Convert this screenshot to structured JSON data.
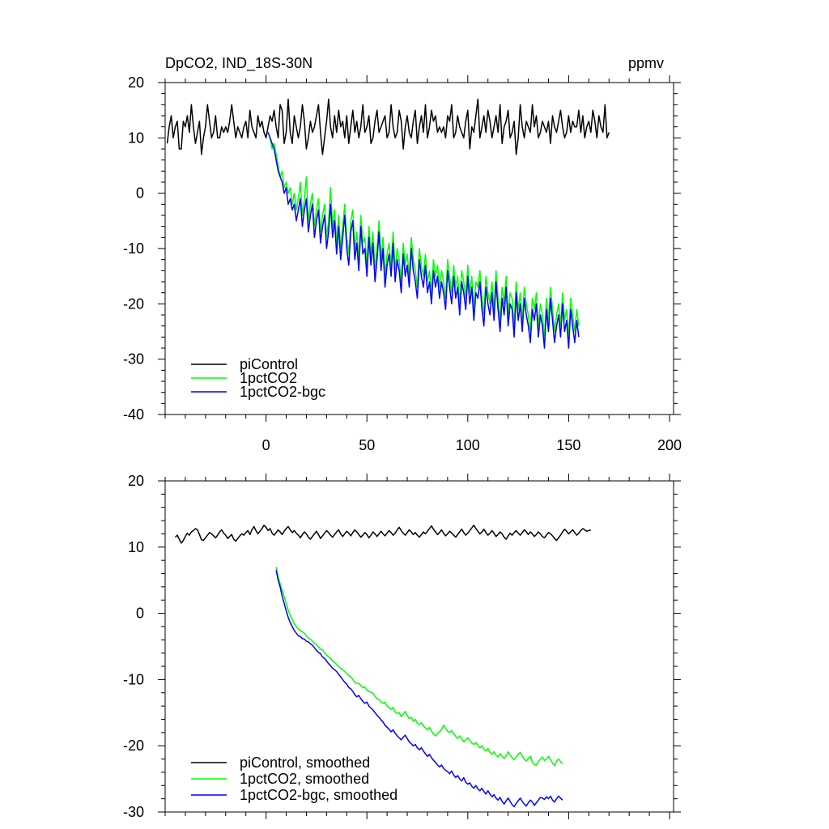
{
  "chart_data": [
    {
      "type": "line",
      "title": "DpCO2, IND_18S-30N",
      "units": "ppmv",
      "xlim": [
        -50,
        202
      ],
      "ylim": [
        -40,
        20
      ],
      "xticks": [
        0,
        50,
        100,
        150,
        200
      ],
      "xtick_labels": [
        "0",
        "50",
        "100",
        "150",
        "200"
      ],
      "yticks": [
        -40,
        -30,
        -20,
        -10,
        0,
        10,
        20
      ],
      "ytick_labels": [
        "-40",
        "-30",
        "-20",
        "-10",
        "0",
        "10",
        "20"
      ],
      "legend_position": "bottom-left",
      "series": [
        {
          "name": "piControl",
          "color": "#000000",
          "x_start": -49,
          "x_step": 1,
          "values": [
            9,
            12,
            14,
            10,
            12,
            13,
            8,
            8,
            13,
            12,
            14,
            11,
            16,
            12,
            9,
            11,
            13,
            7,
            10,
            12,
            16,
            13,
            10,
            11,
            14,
            10,
            10,
            12,
            11,
            12,
            11,
            13,
            16,
            13,
            10,
            12,
            11,
            10,
            12,
            13,
            10,
            15,
            12,
            11,
            10,
            14,
            12,
            13,
            11,
            10,
            12,
            14,
            13,
            15,
            12,
            10,
            16,
            15,
            9,
            11,
            17,
            11,
            9,
            14,
            12,
            10,
            12,
            16,
            13,
            8,
            10,
            13,
            11,
            12,
            14,
            16,
            11,
            7,
            10,
            13,
            17,
            12,
            10,
            14,
            11,
            15,
            12,
            13,
            10,
            14,
            9,
            12,
            15,
            11,
            13,
            10,
            12,
            16,
            11,
            12,
            14,
            9,
            10,
            13,
            15,
            11,
            12,
            13,
            14,
            10,
            11,
            16,
            12,
            10,
            11,
            15,
            13,
            8,
            12,
            14,
            11,
            10,
            13,
            15,
            9,
            12,
            14,
            11,
            16,
            10,
            12,
            15,
            13,
            14,
            11,
            12,
            11,
            12,
            10,
            14,
            13,
            16,
            10,
            11,
            14,
            12,
            11,
            10,
            13,
            15,
            8,
            12,
            11,
            14,
            17,
            10,
            12,
            14,
            11,
            15,
            13,
            10,
            12,
            14,
            11,
            16,
            9,
            12,
            13,
            15,
            10,
            11,
            13,
            7,
            10,
            16,
            12,
            10,
            13,
            12,
            11,
            16,
            12,
            14,
            10,
            11,
            13,
            12,
            11,
            13,
            9,
            14,
            12,
            11,
            13,
            15,
            12,
            10,
            11,
            14,
            11,
            13,
            12,
            12,
            15,
            11,
            14,
            10,
            12,
            13,
            11,
            15,
            13,
            10,
            14,
            12,
            11,
            16,
            10,
            11
          ],
          "legend_label": "piControl"
        },
        {
          "name": "1pctCO2",
          "color": "#00ff00",
          "x_start": 1,
          "x_step": 1,
          "values": [
            11,
            10,
            8,
            9,
            7,
            5,
            3,
            4,
            1,
            2,
            0,
            1,
            -2,
            0,
            -3,
            -1,
            2,
            -4,
            -1,
            3,
            -5,
            -2,
            0,
            -6,
            -3,
            -1,
            -7,
            -4,
            -2,
            -8,
            -5,
            1,
            -6,
            -3,
            -9,
            -4,
            -10,
            -6,
            -2,
            -8,
            -11,
            -5,
            -3,
            -10,
            -7,
            -12,
            -4,
            -9,
            -8,
            -13,
            -6,
            -11,
            -7,
            -14,
            -10,
            -5,
            -12,
            -8,
            -15,
            -11,
            -9,
            -13,
            -7,
            -14,
            -10,
            -12,
            -16,
            -9,
            -13,
            -11,
            -15,
            -8,
            -12,
            -14,
            -17,
            -10,
            -13,
            -15,
            -11,
            -16,
            -14,
            -18,
            -12,
            -15,
            -13,
            -17,
            -14,
            -16,
            -19,
            -12,
            -15,
            -18,
            -13,
            -17,
            -15,
            -20,
            -14,
            -16,
            -19,
            -13,
            -18,
            -15,
            -21,
            -16,
            -17,
            -14,
            -19,
            -22,
            -15,
            -18,
            -20,
            -16,
            -21,
            -14,
            -19,
            -23,
            -17,
            -20,
            -15,
            -22,
            -18,
            -19,
            -24,
            -16,
            -21,
            -18,
            -23,
            -17,
            -20,
            -22,
            -25,
            -19,
            -21,
            -18,
            -24,
            -20,
            -22,
            -26,
            -19,
            -23,
            -17,
            -21,
            -25,
            -22,
            -20,
            -24,
            -18,
            -23,
            -21,
            -26,
            -19,
            -22,
            -25,
            -21,
            -24
          ]
        },
        {
          "name": "1pctCO2-bgc",
          "color": "#0000ff",
          "x_start": 1,
          "x_step": 1,
          "values": [
            11,
            10,
            9,
            8,
            6,
            4,
            3,
            2,
            0,
            1,
            -2,
            -1,
            -3,
            -2,
            -5,
            -3,
            -1,
            -6,
            -3,
            -1,
            -7,
            -4,
            -2,
            -8,
            -5,
            -3,
            -9,
            -6,
            -4,
            -10,
            -7,
            -2,
            -8,
            -5,
            -11,
            -6,
            -12,
            -8,
            -4,
            -10,
            -13,
            -7,
            -5,
            -12,
            -9,
            -14,
            -6,
            -11,
            -10,
            -15,
            -8,
            -13,
            -9,
            -16,
            -12,
            -7,
            -14,
            -10,
            -17,
            -13,
            -11,
            -15,
            -9,
            -16,
            -12,
            -14,
            -18,
            -11,
            -15,
            -13,
            -17,
            -10,
            -14,
            -16,
            -19,
            -12,
            -15,
            -17,
            -13,
            -18,
            -16,
            -20,
            -14,
            -17,
            -15,
            -19,
            -16,
            -18,
            -21,
            -14,
            -17,
            -20,
            -15,
            -19,
            -17,
            -22,
            -16,
            -18,
            -21,
            -15,
            -20,
            -17,
            -23,
            -18,
            -19,
            -16,
            -21,
            -24,
            -17,
            -20,
            -22,
            -18,
            -23,
            -16,
            -21,
            -25,
            -19,
            -22,
            -17,
            -24,
            -20,
            -21,
            -26,
            -18,
            -23,
            -20,
            -25,
            -19,
            -22,
            -24,
            -27,
            -21,
            -23,
            -20,
            -26,
            -22,
            -24,
            -28,
            -21,
            -25,
            -19,
            -23,
            -27,
            -24,
            -22,
            -26,
            -20,
            -25,
            -23,
            -28,
            -21,
            -24,
            -27,
            -23,
            -26
          ]
        }
      ]
    },
    {
      "type": "line",
      "title": "",
      "xlim": [
        -50,
        202
      ],
      "ylim": [
        -30,
        20
      ],
      "yticks": [
        -30,
        -20,
        -10,
        0,
        10,
        20
      ],
      "ytick_labels": [
        "-30",
        "-20",
        "-10",
        "0",
        "10",
        "20"
      ],
      "legend_position": "bottom-left",
      "series": [
        {
          "name": "piControl, smoothed",
          "color": "#000000",
          "x_start": -45,
          "x_step": 1,
          "values": [
            11.5,
            11.8,
            11.2,
            10.6,
            11.0,
            11.6,
            12.1,
            11.8,
            12.3,
            12.5,
            12.8,
            12.6,
            11.9,
            11.1,
            11.0,
            11.4,
            11.8,
            12.2,
            12.0,
            11.7,
            11.4,
            11.8,
            12.3,
            12.6,
            12.1,
            11.8,
            11.3,
            11.6,
            11.9,
            11.2,
            10.9,
            11.3,
            11.7,
            12.0,
            11.8,
            12.2,
            12.5,
            11.9,
            12.6,
            13.1,
            12.5,
            12.0,
            12.4,
            12.8,
            13.3,
            13.0,
            12.5,
            12.8,
            12.1,
            11.8,
            12.2,
            12.6,
            12.3,
            11.9,
            12.4,
            12.8,
            13.1,
            12.6,
            12.2,
            12.5,
            12.1,
            11.8,
            11.4,
            11.9,
            12.3,
            12.0,
            11.5,
            11.2,
            11.6,
            12.0,
            12.4,
            11.9,
            11.3,
            11.7,
            12.1,
            12.5,
            12.2,
            11.8,
            11.5,
            11.9,
            12.3,
            12.6,
            12.0,
            11.6,
            12.0,
            12.4,
            12.1,
            11.7,
            12.2,
            12.6,
            12.3,
            11.9,
            11.5,
            11.8,
            12.2,
            11.9,
            11.4,
            11.8,
            12.3,
            12.0,
            11.6,
            12.0,
            12.4,
            12.0,
            11.7,
            12.1,
            12.5,
            12.2,
            11.8,
            12.1,
            12.6,
            13.0,
            12.5,
            12.1,
            11.8,
            12.2,
            12.6,
            12.3,
            11.9,
            12.2,
            11.8,
            11.5,
            11.9,
            12.3,
            12.0,
            12.4,
            12.8,
            13.2,
            12.7,
            12.3,
            11.9,
            12.2,
            12.6,
            12.1,
            11.7,
            12.0,
            12.4,
            12.1,
            11.8,
            11.5,
            11.9,
            12.3,
            12.7,
            12.2,
            11.8,
            12.1,
            12.5,
            12.9,
            13.3,
            12.8,
            12.4,
            12.0,
            12.3,
            12.7,
            12.2,
            11.8,
            12.1,
            12.5,
            12.1,
            11.6,
            11.9,
            12.3,
            12.0,
            11.5,
            11.2,
            11.7,
            12.1,
            11.8,
            12.2,
            12.5,
            12.1,
            11.8,
            12.2,
            12.6,
            12.3,
            11.9,
            12.3,
            12.0,
            11.6,
            11.9,
            12.3,
            12.0,
            11.6,
            11.4,
            11.8,
            12.2,
            12.0,
            11.7,
            11.3,
            11.0,
            11.4,
            11.8,
            12.3,
            12.7,
            12.4,
            12.0,
            12.3,
            12.6,
            12.2,
            11.8,
            12.1,
            12.5,
            12.8,
            12.6,
            12.4,
            12.5,
            12.6
          ]
        },
        {
          "name": "1pctCO2, smoothed",
          "color": "#00ff00",
          "x_start": 5,
          "x_step": 1,
          "values": [
            7.0,
            5.5,
            4.5,
            3.5,
            2.5,
            1.5,
            0.5,
            -0.3,
            -0.9,
            -1.6,
            -2.0,
            -2.4,
            -2.6,
            -2.8,
            -3.0,
            -3.4,
            -3.7,
            -3.9,
            -4.2,
            -4.5,
            -4.7,
            -5.1,
            -5.4,
            -5.5,
            -5.9,
            -6.3,
            -6.6,
            -6.8,
            -7.2,
            -7.4,
            -7.7,
            -8.0,
            -8.3,
            -8.5,
            -8.8,
            -9.1,
            -9.4,
            -9.6,
            -10.0,
            -10.4,
            -10.6,
            -10.6,
            -10.9,
            -11.2,
            -11.1,
            -11.6,
            -11.8,
            -11.9,
            -12.1,
            -12.5,
            -12.9,
            -13.0,
            -13.4,
            -13.6,
            -13.4,
            -14.0,
            -14.2,
            -14.5,
            -14.2,
            -14.9,
            -15.1,
            -15.0,
            -15.6,
            -15.2,
            -14.8,
            -15.4,
            -15.9,
            -15.7,
            -16.3,
            -16.0,
            -16.6,
            -16.8,
            -16.5,
            -17.0,
            -17.3,
            -17.6,
            -17.2,
            -17.8,
            -18.2,
            -18.5,
            -18.1,
            -17.9,
            -17.5,
            -16.9,
            -17.4,
            -17.8,
            -18.0,
            -17.7,
            -18.2,
            -18.6,
            -18.9,
            -18.5,
            -19.0,
            -19.4,
            -19.1,
            -18.8,
            -19.2,
            -19.6,
            -19.8,
            -19.5,
            -20.0,
            -20.3,
            -20.0,
            -20.5,
            -20.8,
            -20.4,
            -21.0,
            -21.3,
            -20.9,
            -21.4,
            -21.7,
            -21.2,
            -21.6,
            -21.9,
            -21.5,
            -20.9,
            -21.4,
            -21.8,
            -22.1,
            -21.7,
            -21.3,
            -21.0,
            -21.5,
            -22.0,
            -22.3,
            -21.9,
            -21.6,
            -22.5,
            -22.8,
            -22.9,
            -22.4,
            -22.0,
            -21.7,
            -22.2,
            -22.0,
            -21.6,
            -22.1,
            -22.6,
            -23.0,
            -22.3,
            -22.0,
            -22.4,
            -22.7
          ]
        },
        {
          "name": "1pctCO2-bgc, smoothed",
          "color": "#0000ff",
          "x_start": 5,
          "x_step": 1,
          "values": [
            6.5,
            5.0,
            4.0,
            2.6,
            1.5,
            0.4,
            -0.6,
            -1.4,
            -2.0,
            -2.6,
            -3.0,
            -3.4,
            -3.5,
            -3.8,
            -3.9,
            -4.2,
            -4.3,
            -4.6,
            -4.8,
            -5.2,
            -5.6,
            -5.9,
            -6.1,
            -6.6,
            -6.8,
            -7.2,
            -7.6,
            -7.9,
            -8.3,
            -8.5,
            -8.8,
            -9.2,
            -9.6,
            -10.0,
            -10.4,
            -10.7,
            -11.2,
            -11.4,
            -11.8,
            -12.3,
            -12.6,
            -12.4,
            -12.9,
            -13.3,
            -13.6,
            -13.4,
            -14.0,
            -14.3,
            -14.6,
            -15.0,
            -15.4,
            -15.7,
            -16.1,
            -16.4,
            -16.9,
            -17.2,
            -17.5,
            -17.9,
            -17.6,
            -18.1,
            -18.5,
            -18.8,
            -19.1,
            -18.7,
            -18.4,
            -18.9,
            -19.4,
            -19.7,
            -20.0,
            -19.8,
            -20.3,
            -20.6,
            -20.3,
            -20.8,
            -21.2,
            -21.6,
            -21.3,
            -21.8,
            -22.2,
            -22.5,
            -22.9,
            -23.2,
            -22.9,
            -23.4,
            -23.7,
            -23.9,
            -24.2,
            -23.8,
            -24.4,
            -24.8,
            -24.5,
            -25.0,
            -25.3,
            -24.8,
            -25.5,
            -25.8,
            -25.6,
            -26.1,
            -26.4,
            -26.0,
            -26.5,
            -26.8,
            -26.4,
            -26.9,
            -27.3,
            -26.8,
            -27.3,
            -27.7,
            -27.4,
            -27.9,
            -28.2,
            -27.8,
            -28.4,
            -28.8,
            -28.3,
            -27.9,
            -28.4,
            -28.9,
            -29.2,
            -28.7,
            -28.3,
            -27.9,
            -28.4,
            -28.8,
            -29.1,
            -28.6,
            -28.2,
            -28.5,
            -29.0,
            -28.6,
            -28.2,
            -27.8,
            -27.9,
            -28.1,
            -27.7,
            -28.0,
            -27.6,
            -28.2,
            -28.5,
            -28.0,
            -27.6,
            -27.9,
            -28.2
          ]
        }
      ]
    }
  ]
}
